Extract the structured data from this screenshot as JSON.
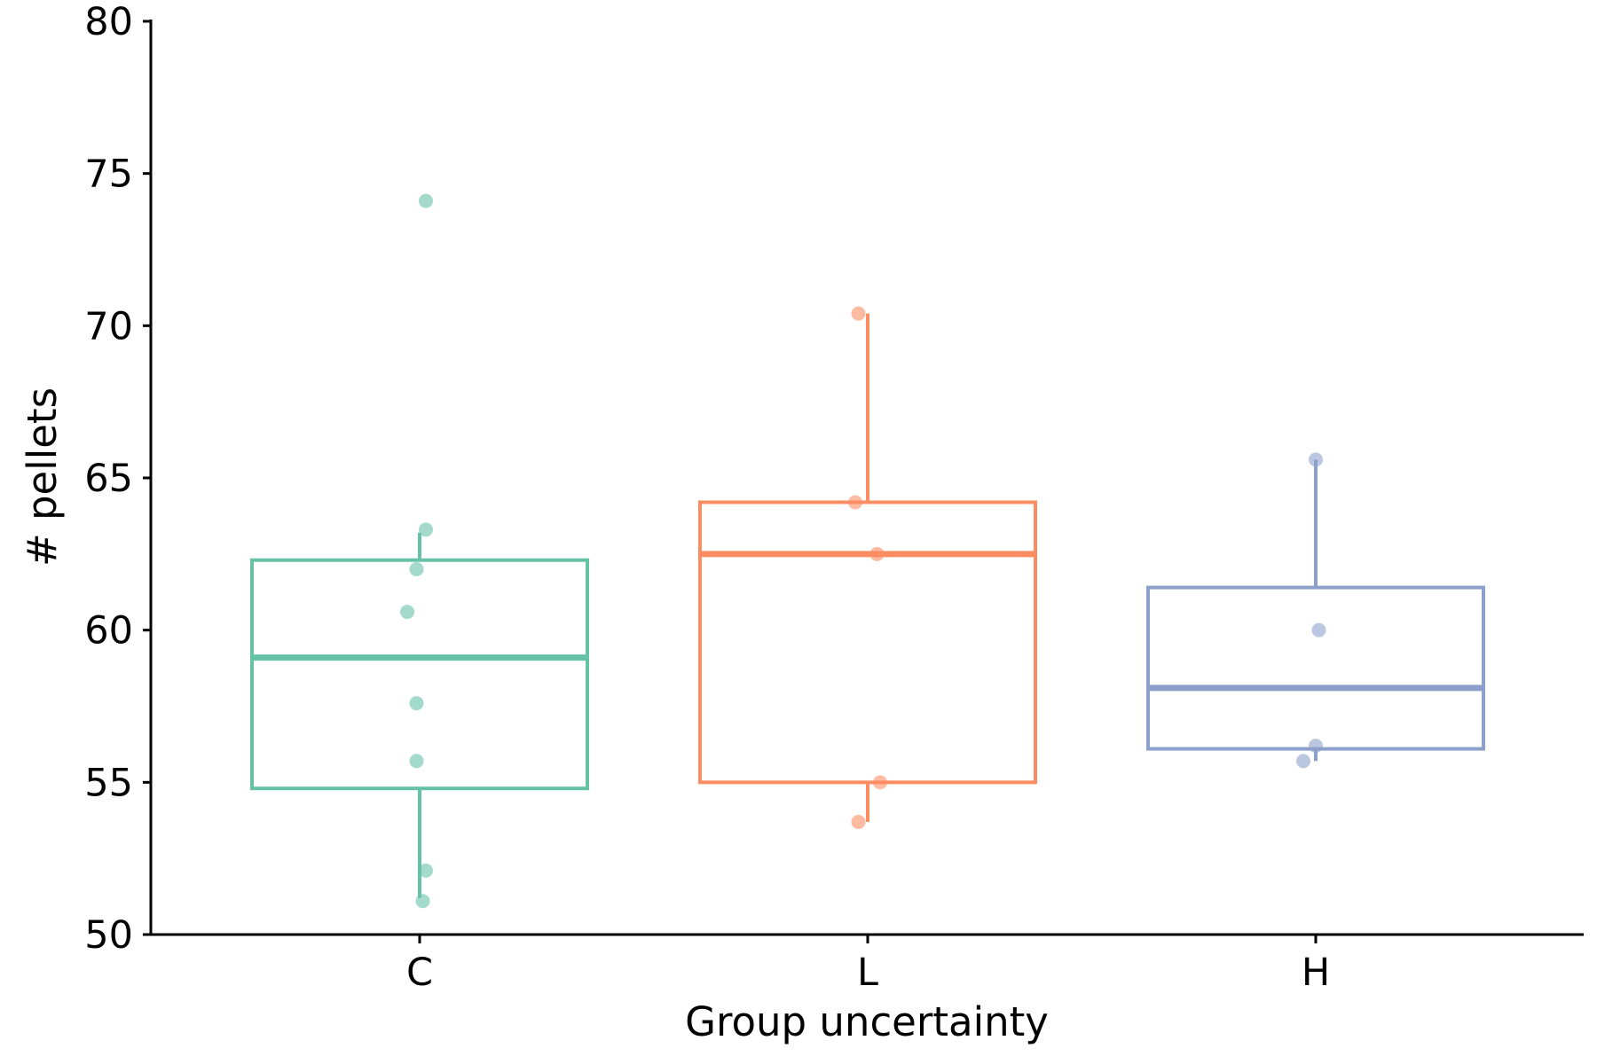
{
  "chart_data": {
    "type": "box",
    "title": "",
    "xlabel": "Group uncertainty",
    "ylabel": "# pellets",
    "ylim": [
      50,
      80
    ],
    "yticks": [
      50,
      55,
      60,
      65,
      70,
      75,
      80
    ],
    "ytick_labels": [
      "50",
      "55",
      "60",
      "65",
      "70",
      "75",
      "80"
    ],
    "categories": [
      "C",
      "L",
      "H"
    ],
    "grid": false,
    "legend": "none",
    "boxes": [
      {
        "name": "C",
        "color": "#66c2a5",
        "whisker_low": 51.2,
        "q1": 54.8,
        "median": 59.1,
        "q3": 62.3,
        "whisker_high": 63.2,
        "points": [
          {
            "offset": 0.02,
            "value": 74.1
          },
          {
            "offset": 0.02,
            "value": 63.3
          },
          {
            "offset": -0.01,
            "value": 62.0
          },
          {
            "offset": -0.04,
            "value": 60.6
          },
          {
            "offset": -0.01,
            "value": 57.6
          },
          {
            "offset": -0.01,
            "value": 55.7
          },
          {
            "offset": 0.02,
            "value": 52.1
          },
          {
            "offset": 0.01,
            "value": 51.1
          }
        ]
      },
      {
        "name": "L",
        "color": "#fc8d62",
        "whisker_low": 53.7,
        "q1": 55.0,
        "median": 62.5,
        "q3": 64.2,
        "whisker_high": 70.4,
        "points": [
          {
            "offset": -0.03,
            "value": 70.4
          },
          {
            "offset": -0.04,
            "value": 64.2
          },
          {
            "offset": 0.03,
            "value": 62.5
          },
          {
            "offset": 0.04,
            "value": 55.0
          },
          {
            "offset": -0.03,
            "value": 53.7
          }
        ]
      },
      {
        "name": "H",
        "color": "#8da0cb",
        "whisker_low": 55.7,
        "q1": 56.1,
        "median": 58.1,
        "q3": 61.4,
        "whisker_high": 65.6,
        "points": [
          {
            "offset": 0.0,
            "value": 65.6
          },
          {
            "offset": 0.01,
            "value": 60.0
          },
          {
            "offset": 0.0,
            "value": 56.2
          },
          {
            "offset": -0.04,
            "value": 55.7
          }
        ]
      }
    ]
  }
}
